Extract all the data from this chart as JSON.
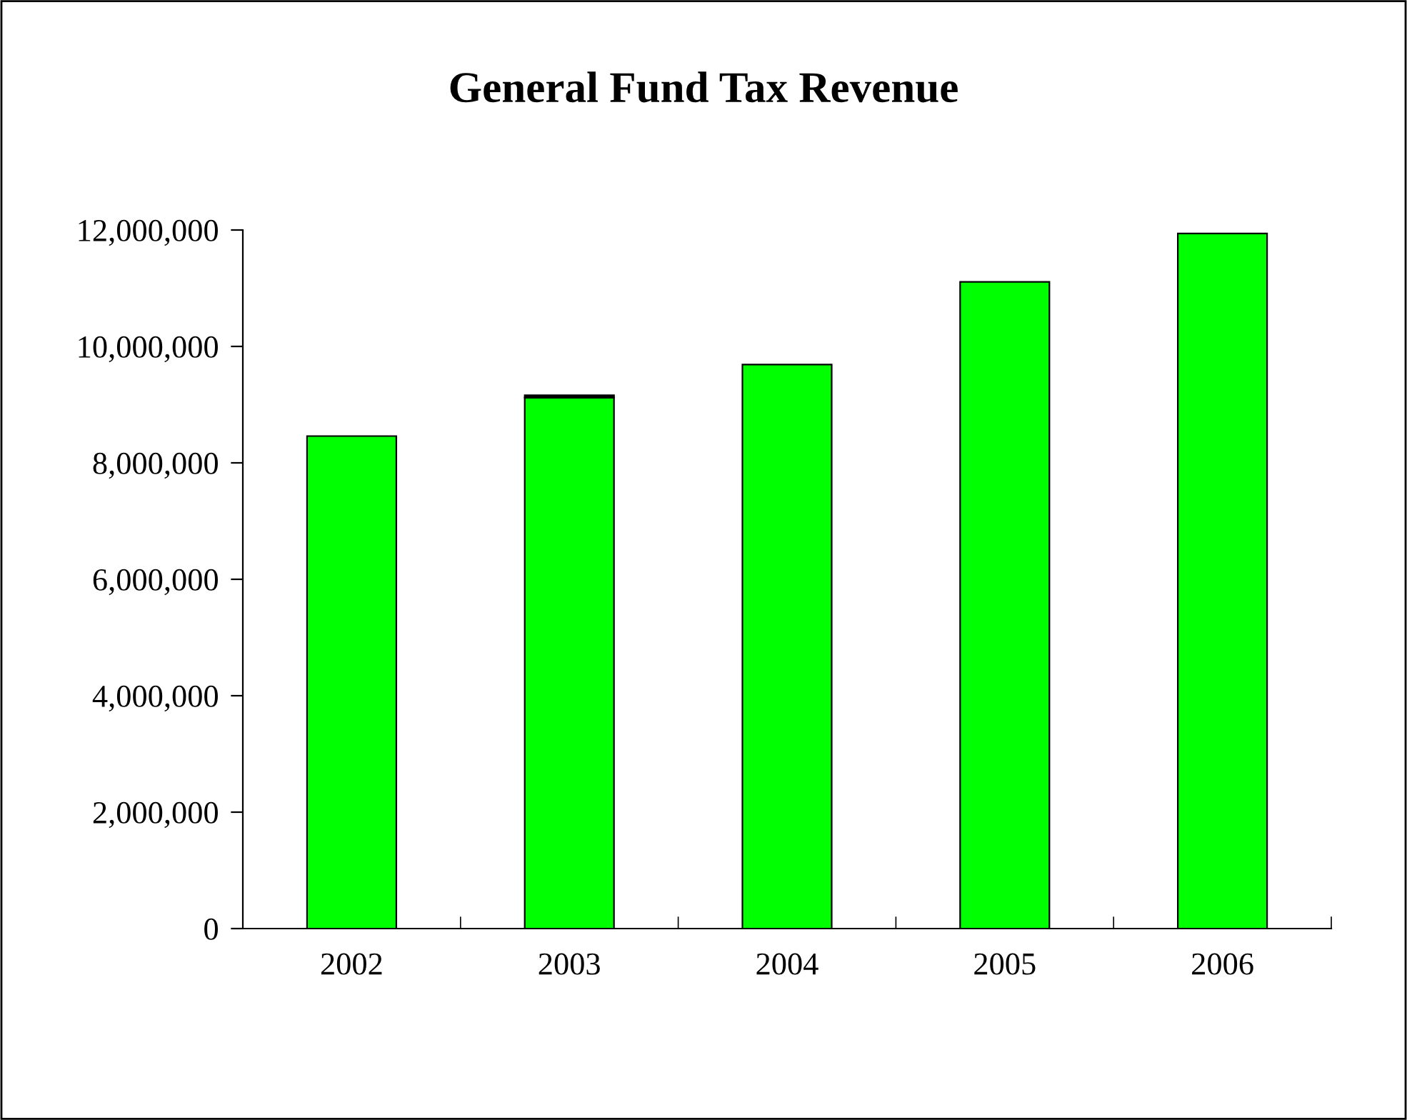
{
  "chart_data": {
    "type": "bar",
    "title": "General Fund Tax Revenue",
    "stacked": true,
    "categories": [
      "2002",
      "2003",
      "2004",
      "2005",
      "2006"
    ],
    "series": [
      {
        "color": "#00ff00",
        "values": [
          8460000,
          9120000,
          9690000,
          11110000,
          11940000
        ]
      },
      {
        "color": "#000000",
        "values": [
          null,
          40000,
          null,
          null,
          null
        ]
      }
    ],
    "ylim": [
      0,
      12000000
    ],
    "yticks": [
      {
        "value": 0,
        "label": "0"
      },
      {
        "value": 2000000,
        "label": "2,000,000"
      },
      {
        "value": 4000000,
        "label": "4,000,000"
      },
      {
        "value": 6000000,
        "label": "6,000,000"
      },
      {
        "value": 8000000,
        "label": "8,000,000"
      },
      {
        "value": 10000000,
        "label": "10,000,000"
      },
      {
        "value": 12000000,
        "label": "12,000,000"
      }
    ],
    "grid": false,
    "legend": false
  }
}
